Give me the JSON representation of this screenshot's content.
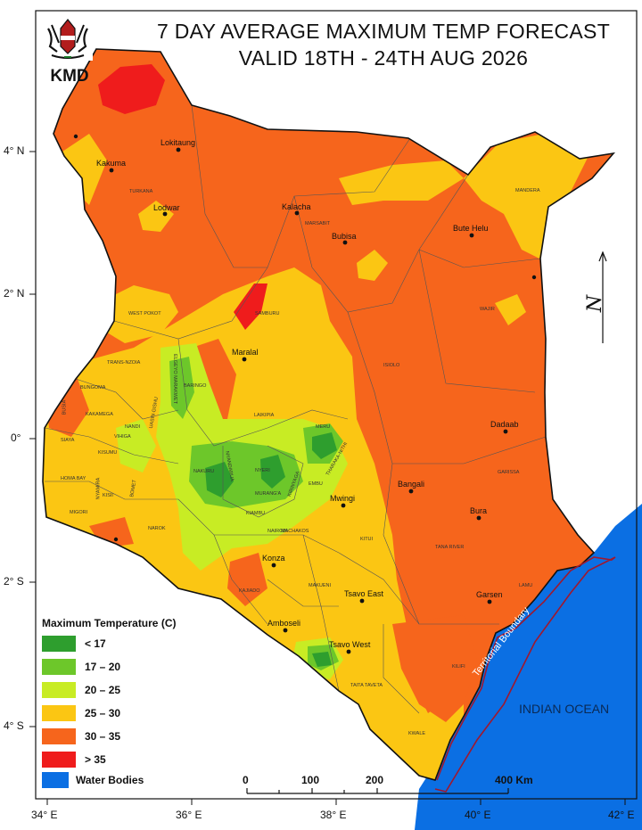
{
  "header": {
    "title_line1": "7 DAY AVERAGE MAXIMUM TEMP FORECAST",
    "title_line2": "VALID 18TH - 24TH AUG 2026",
    "logo_text": "KMD"
  },
  "colors": {
    "lt17": "#2e9e2e",
    "c17_20": "#6dc72a",
    "c20_25": "#c8ec24",
    "c25_30": "#fbc613",
    "c30_35": "#f6651c",
    "gt35": "#ef1c1c",
    "water": "#0b6fe3",
    "boundary": "#a0182e"
  },
  "legend": {
    "title": "Maximum Temperature (C)",
    "items": [
      {
        "label": "< 17",
        "color": "#2e9e2e"
      },
      {
        "label": "17 – 20",
        "color": "#6dc72a"
      },
      {
        "label": "20 – 25",
        "color": "#c8ec24"
      },
      {
        "label": "25 – 30",
        "color": "#fbc613"
      },
      {
        "label": "30 – 35",
        "color": "#f6651c"
      },
      {
        "label": "> 35",
        "color": "#ef1c1c"
      }
    ],
    "water_label": "Water Bodies"
  },
  "axes": {
    "y_labels": [
      "4° N",
      "2° N",
      "0°",
      "2° S",
      "4° S"
    ],
    "x_labels": [
      "34° E",
      "36° E",
      "38° E",
      "40° E",
      "42° E"
    ]
  },
  "scale_bar": {
    "labels": [
      "0",
      "100",
      "200",
      "400 Km"
    ]
  },
  "annotations": {
    "ocean": "INDIAN OCEAN",
    "boundary": "Territorial Boundary",
    "north_letter": "N"
  },
  "cities": [
    "Lokitaung",
    "Kakuma",
    "Lodwar",
    "Kalacha",
    "Bubisa",
    "Bute Helu",
    "Maralal",
    "Dadaab",
    "Bangali",
    "Mwingi",
    "Bura",
    "Konza",
    "Tsavo East",
    "Garsen",
    "Amboseli",
    "Tsavo West"
  ],
  "counties": [
    "TURKANA",
    "MARSABIT",
    "MANDERA",
    "WAJIR",
    "WEST POKOT",
    "SAMBURU",
    "TRANS-NZOIA",
    "ISIOLO",
    "BARINGO",
    "LAIKIPIA",
    "MERU",
    "BUNGOMA",
    "KAKAMEGA",
    "NANDI",
    "SIAYA",
    "KISUMU",
    "HOMA BAY",
    "MIGORI",
    "KISII",
    "NAROK",
    "NAKURU",
    "NYERI",
    "EMBU",
    "KIAMBU",
    "MURANG'A",
    "MACHAKOS",
    "NAIROBI",
    "KITUI",
    "GARISSA",
    "TANA RIVER",
    "LAMU",
    "MAKUENI",
    "KAJIADO",
    "TAITA TAVETA",
    "KILIFI",
    "KWALE",
    "THARAKA-NITHI",
    "KIRINYAGA",
    "ELGEYO MARAKWET",
    "UASIN GISHU",
    "NYANDARUA",
    "BOMET",
    "VIHIGA",
    "BUSIA",
    "NYAMIRA"
  ]
}
